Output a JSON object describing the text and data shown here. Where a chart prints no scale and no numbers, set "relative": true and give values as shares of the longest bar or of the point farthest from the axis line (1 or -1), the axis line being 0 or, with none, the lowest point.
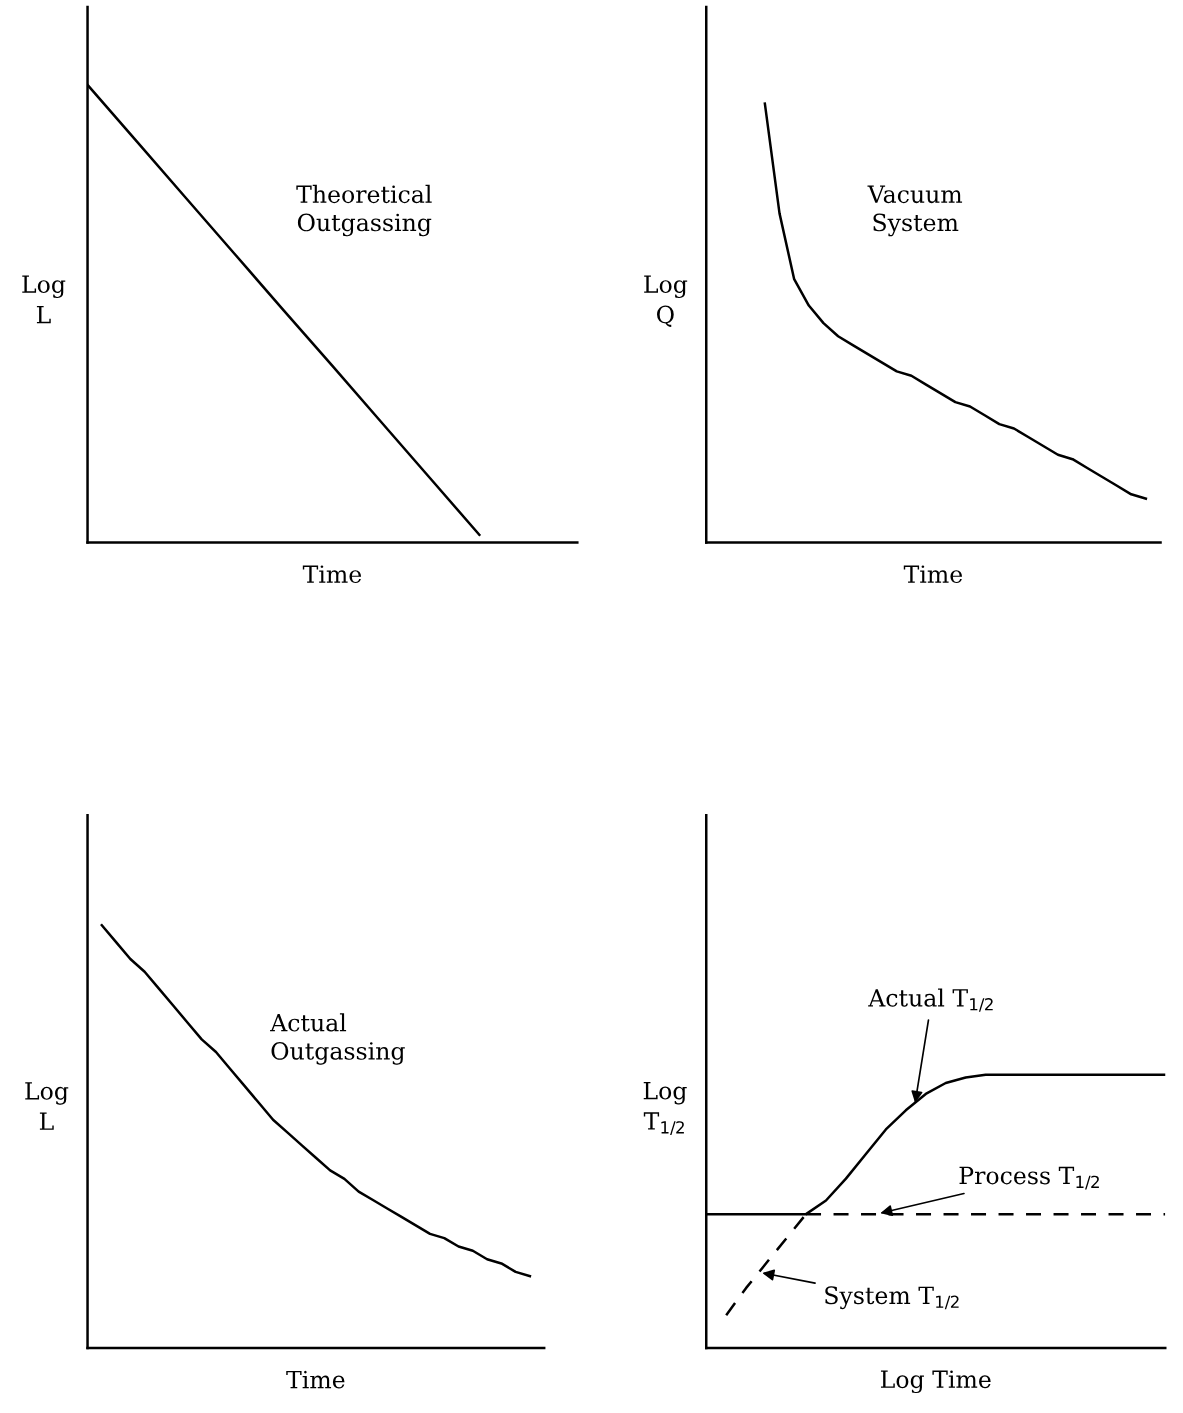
{
  "chart_data": [
    {
      "type": "line",
      "relative": true,
      "tick_labels": false,
      "xlabel": "Time",
      "ylabel": "Log L",
      "annotations": [
        "Theoretical\nOutgassing"
      ],
      "categories": [
        null,
        null,
        null,
        null,
        null,
        null,
        null,
        null,
        null,
        null,
        null
      ],
      "series": [
        {
          "color": "#000000",
          "values": [
            1.0,
            0.877,
            0.754,
            0.631,
            0.508,
            0.386,
            0.263,
            0.14,
            0.017,
            null,
            null
          ]
        }
      ]
    },
    {
      "type": "line",
      "relative": true,
      "tick_labels": false,
      "xlabel": "Time",
      "ylabel": "Log Q",
      "annotations": [
        "Vacuum\nSystem"
      ],
      "categories": [
        null,
        null,
        null,
        null,
        null,
        null,
        null,
        null,
        null,
        null,
        null,
        null,
        null,
        null,
        null,
        null,
        null,
        null,
        null,
        null,
        null,
        null,
        null,
        null,
        null,
        null,
        null,
        null,
        null,
        null,
        null,
        null
      ],
      "series": [
        {
          "color": "#000000",
          "values": [
            null,
            null,
            null,
            null,
            1.0,
            0.75,
            0.6,
            0.54,
            0.5,
            0.47,
            0.45,
            0.43,
            0.41,
            0.39,
            0.38,
            0.36,
            0.34,
            0.32,
            0.31,
            0.29,
            0.27,
            0.26,
            0.24,
            0.22,
            0.2,
            0.19,
            0.17,
            0.15,
            0.13,
            0.11,
            0.1,
            null
          ]
        }
      ]
    },
    {
      "type": "line",
      "relative": true,
      "tick_labels": false,
      "xlabel": "Time",
      "ylabel": "Log L",
      "annotations": [
        "Actual\nOutgassing"
      ],
      "categories": [
        null,
        null,
        null,
        null,
        null,
        null,
        null,
        null,
        null,
        null,
        null,
        null,
        null,
        null,
        null,
        null,
        null,
        null,
        null,
        null,
        null,
        null,
        null,
        null,
        null,
        null,
        null,
        null,
        null,
        null,
        null,
        null,
        null
      ],
      "series": [
        {
          "color": "#000000",
          "values": [
            null,
            1.0,
            0.96,
            0.92,
            0.89,
            0.85,
            0.81,
            0.77,
            0.73,
            0.7,
            0.66,
            0.62,
            0.58,
            0.54,
            0.51,
            0.48,
            0.45,
            0.42,
            0.4,
            0.37,
            0.35,
            0.33,
            0.31,
            0.29,
            0.27,
            0.26,
            0.24,
            0.23,
            0.21,
            0.2,
            0.18,
            0.17,
            null
          ]
        }
      ]
    },
    {
      "type": "line",
      "relative": true,
      "tick_labels": false,
      "xlabel": "Log Time",
      "ylabel": "Log T$_{1/2}$",
      "annotations": [
        "Actual T$_{1/2}$",
        "Process T$_{1/2}$",
        "System T$_{1/2}$"
      ],
      "categories": [
        null,
        null,
        null,
        null,
        null,
        null,
        null,
        null,
        null,
        null,
        null,
        null,
        null,
        null,
        null,
        null,
        null,
        null,
        null,
        null,
        null,
        null,
        null,
        null
      ],
      "series": [
        {
          "color": "#000000",
          "values": [
            0.49,
            0.49,
            0.49,
            0.49,
            0.49,
            0.49,
            0.54,
            0.62,
            0.71,
            0.8,
            0.87,
            0.93,
            0.97,
            0.99,
            1.0,
            1.0,
            1.0,
            1.0,
            1.0,
            1.0,
            1.0,
            1.0,
            1.0,
            1.0
          ]
        },
        {
          "color": "#000000",
          "line_style": "dashed",
          "values": [
            null,
            null,
            null,
            null,
            null,
            0.49,
            0.49,
            0.49,
            0.49,
            0.49,
            0.49,
            0.49,
            0.49,
            0.49,
            0.49,
            0.49,
            0.49,
            0.49,
            0.49,
            0.49,
            0.49,
            0.49,
            0.49,
            0.49
          ]
        },
        {
          "color": "#000000",
          "line_style": "dashed",
          "values": [
            null,
            0.12,
            0.22,
            0.31,
            0.4,
            0.49,
            null,
            null,
            null,
            null,
            null,
            null,
            null,
            null,
            null,
            null,
            null,
            null,
            null,
            null,
            null,
            null,
            null,
            null
          ]
        }
      ]
    }
  ]
}
